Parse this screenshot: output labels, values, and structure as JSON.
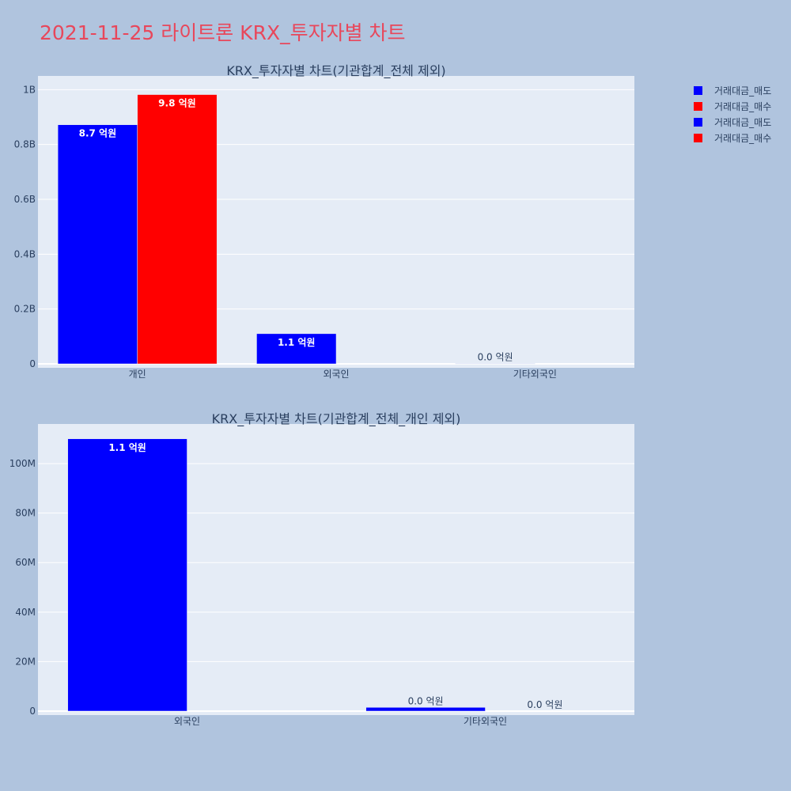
{
  "page": {
    "title": "2021-11-25 라이트론 KRX_투자자별 차트",
    "title_color": "#e8475b",
    "background": "#b0c4de",
    "plot_background": "#e5ecf6",
    "text_color": "#2a3f5f"
  },
  "legend": {
    "position": "top-right",
    "entries": [
      {
        "label": "거래대금_매도",
        "color": "#0000ff"
      },
      {
        "label": "거래대금_매수",
        "color": "#ff0000"
      },
      {
        "label": "거래대금_매도",
        "color": "#0000ff"
      },
      {
        "label": "거래대금_매수",
        "color": "#ff0000"
      }
    ]
  },
  "chart_data": [
    {
      "type": "bar",
      "title": "KRX_투자자별 차트(기관합계_전체 제외)",
      "categories": [
        "개인",
        "외국인",
        "기타외국인"
      ],
      "series": [
        {
          "name": "거래대금_매도",
          "color": "#0000ff",
          "values": [
            872000000,
            110000000,
            1500000
          ],
          "labels": [
            "8.7 억원",
            "1.1 억원",
            "0.0 억원"
          ]
        },
        {
          "name": "거래대금_매수",
          "color": "#ff0000",
          "values": [
            982000000,
            0,
            0
          ],
          "labels": [
            "9.8 억원",
            "",
            ""
          ]
        }
      ],
      "ylim": [
        0,
        1050000000
      ],
      "yticks": [
        0,
        200000000,
        400000000,
        600000000,
        800000000,
        1000000000
      ],
      "ytick_labels": [
        "0",
        "0.2B",
        "0.4B",
        "0.6B",
        "0.8B",
        "1B"
      ],
      "grid": true
    },
    {
      "type": "bar",
      "title": "KRX_투자자별 차트(기관합계_전체_개인 제외)",
      "categories": [
        "외국인",
        "기타외국인"
      ],
      "series": [
        {
          "name": "거래대금_매도",
          "color": "#0000ff",
          "values": [
            110000000,
            1500000
          ],
          "labels": [
            "1.1 억원",
            "0.0 억원"
          ]
        },
        {
          "name": "거래대금_매수",
          "color": "#ff0000",
          "values": [
            0,
            0
          ],
          "labels": [
            "",
            "0.0 억원"
          ]
        }
      ],
      "ylim": [
        0,
        116000000
      ],
      "yticks": [
        0,
        20000000,
        40000000,
        60000000,
        80000000,
        100000000
      ],
      "ytick_labels": [
        "0",
        "20M",
        "40M",
        "60M",
        "80M",
        "100M"
      ],
      "grid": true
    }
  ]
}
